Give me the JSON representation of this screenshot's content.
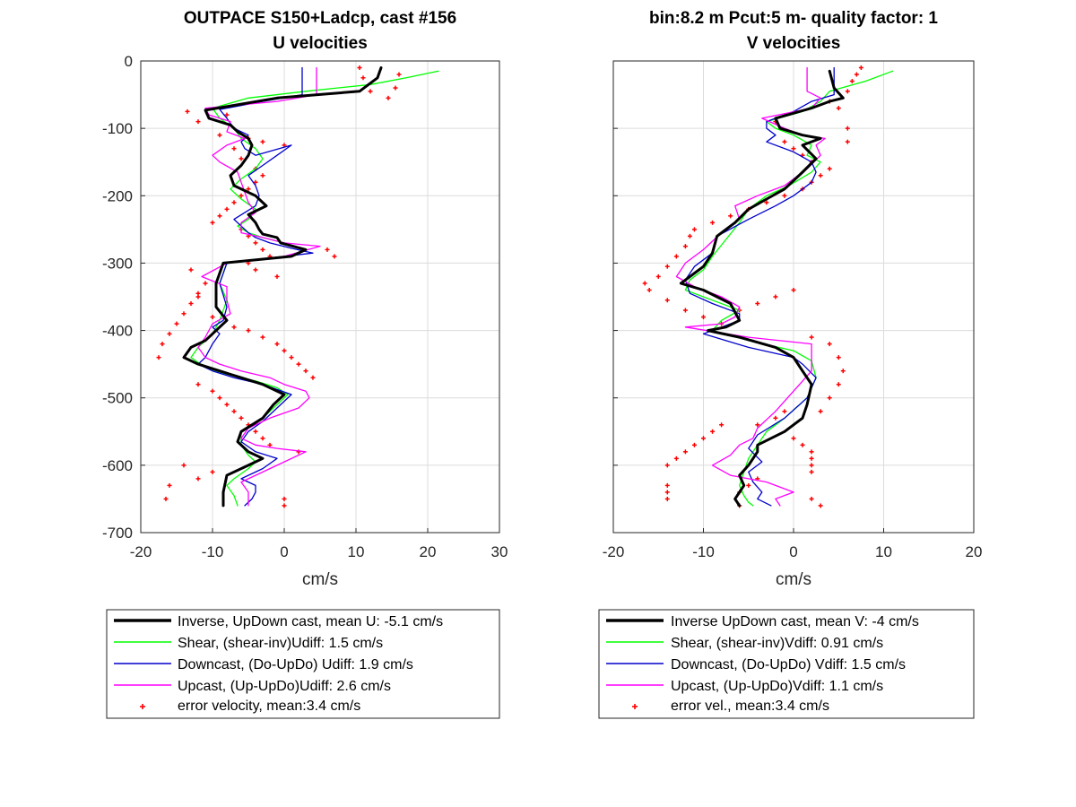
{
  "chart_data": [
    {
      "type": "line",
      "title": [
        "OUTPACE S150+Ladcp, cast #156",
        "U velocities"
      ],
      "xlabel": "cm/s",
      "ylabel": "",
      "xlim": [
        -20,
        30
      ],
      "ylim": [
        -700,
        0
      ],
      "xticks": [
        -20,
        -10,
        0,
        10,
        20,
        30
      ],
      "yticks": [
        0,
        -100,
        -200,
        -300,
        -400,
        -500,
        -600,
        -700
      ],
      "grid": true,
      "legend_position": "below",
      "series": [
        {
          "key": "inverse",
          "name": "Inverse, UpDown cast, mean U:  -5.1 cm/s",
          "color": "#000000",
          "x": [
            13.5,
            13,
            10.5,
            -1,
            -11,
            -10.5,
            -7.5,
            -6.5,
            -5,
            -4.5,
            -5,
            -6,
            -7.5,
            -7,
            -4,
            -2.5,
            -5,
            -4,
            -3.5,
            -3,
            -1,
            -0.5,
            3,
            1,
            -8.5,
            -9.5,
            -9.5,
            -8,
            -10,
            -11,
            -13,
            -14,
            -12,
            -9,
            -6,
            -3,
            0,
            -1.5,
            -3,
            -6,
            -6.5,
            -5,
            -3,
            -5,
            -8,
            -8.5,
            -8.5
          ],
          "y": [
            -10,
            -25,
            -45,
            -55,
            -73,
            -85,
            -95,
            -105,
            -115,
            -125,
            -140,
            -155,
            -170,
            -185,
            -200,
            -215,
            -228,
            -240,
            -250,
            -257,
            -262,
            -270,
            -280,
            -290,
            -300,
            -330,
            -365,
            -385,
            -405,
            -415,
            -425,
            -440,
            -450,
            -460,
            -470,
            -480,
            -495,
            -510,
            -530,
            -550,
            -565,
            -580,
            -590,
            -600,
            -615,
            -640,
            -660
          ]
        },
        {
          "key": "shear",
          "name": "Shear, (shear-inv)Udiff:  1.5 cm/s",
          "color": "#00ff00",
          "x": [
            21.5,
            17,
            12,
            3,
            -5,
            -10,
            -9,
            -7,
            -6,
            -4,
            -3,
            -4,
            -6,
            -7.5,
            -6,
            -4,
            -5,
            -6.5,
            -5,
            -3,
            0,
            3,
            1,
            -8,
            -9,
            -8,
            -9,
            -10,
            -12,
            -13,
            -11,
            -8,
            -4,
            -1,
            0.5,
            -1,
            -3,
            -6,
            -6,
            -5,
            -4,
            -5,
            -7,
            -8,
            -7,
            -6.5
          ],
          "y": [
            -15,
            -25,
            -35,
            -45,
            -55,
            -70,
            -85,
            -100,
            -115,
            -130,
            -145,
            -160,
            -175,
            -190,
            -205,
            -220,
            -235,
            -245,
            -255,
            -262,
            -270,
            -280,
            -290,
            -300,
            -330,
            -355,
            -385,
            -405,
            -425,
            -440,
            -455,
            -465,
            -475,
            -485,
            -495,
            -510,
            -530,
            -550,
            -570,
            -585,
            -595,
            -605,
            -620,
            -630,
            -645,
            -660
          ]
        },
        {
          "key": "downcast",
          "name": "Downcast, (Do-UpDo) Udiff:  1.9 cm/s",
          "color": "#0000cc",
          "x": [
            2.5,
            2.5,
            2.5,
            -3,
            -9,
            -8,
            -7,
            -5,
            -6,
            -5.5,
            -4,
            1,
            -1,
            -3,
            -5,
            -4,
            -3.5,
            -4,
            -7,
            -5,
            -4,
            -2,
            1,
            4,
            -8,
            -9,
            -8,
            -8.5,
            -10,
            -9,
            -10,
            -11,
            -12,
            -10,
            -7,
            -3,
            1,
            -1,
            -3,
            -5,
            -6,
            -4,
            -1,
            -3,
            -6,
            -4,
            -4,
            -4.5,
            -5.5
          ],
          "y": [
            -10,
            -30,
            -50,
            -60,
            -72,
            -85,
            -100,
            -110,
            -120,
            -130,
            -140,
            -125,
            -140,
            -155,
            -170,
            -185,
            -200,
            -215,
            -235,
            -255,
            -262,
            -270,
            -278,
            -285,
            -300,
            -330,
            -365,
            -385,
            -395,
            -405,
            -420,
            -440,
            -450,
            -460,
            -470,
            -480,
            -495,
            -515,
            -535,
            -550,
            -565,
            -580,
            -590,
            -605,
            -620,
            -630,
            -640,
            -650,
            -660
          ]
        },
        {
          "key": "upcast",
          "name": "Upcast, (Up-UpDo)Udiff:  2.6 cm/s",
          "color": "#ff00ff",
          "x": [
            4.5,
            4.5,
            4.5,
            -1,
            -11,
            -10.5,
            -7.5,
            -8,
            -5.5,
            -8,
            -10,
            -9,
            -6.5,
            -6,
            -5.5,
            -5,
            -4,
            -6,
            -6,
            -3,
            0,
            5,
            0,
            -8,
            -11.5,
            -8,
            -8,
            -7.5,
            -10,
            -11,
            -12,
            -11,
            -9,
            -6,
            -2,
            0,
            3,
            3.5,
            2,
            -2,
            -5,
            -6,
            -4,
            -1,
            3,
            -1,
            -4,
            -6,
            -5,
            -5
          ],
          "y": [
            -10,
            -30,
            -50,
            -60,
            -70,
            -80,
            -90,
            -105,
            -115,
            -125,
            -140,
            -150,
            -165,
            -180,
            -195,
            -210,
            -225,
            -240,
            -255,
            -262,
            -270,
            -275,
            -290,
            -300,
            -320,
            -335,
            -355,
            -375,
            -390,
            -410,
            -425,
            -440,
            -450,
            -460,
            -470,
            -480,
            -490,
            -500,
            -515,
            -530,
            -545,
            -560,
            -570,
            -575,
            -580,
            -600,
            -615,
            -625,
            -640,
            -660
          ]
        }
      ],
      "error_series": {
        "name": "error velocity, mean:3.4 cm/s",
        "color": "#ff0000",
        "x": [
          10.5,
          11,
          12,
          16,
          15.5,
          14.5,
          -13.5,
          -12,
          -8,
          -9,
          -5,
          -7,
          -3,
          0,
          -6,
          -4,
          -3,
          -4,
          -5,
          -6,
          -7,
          -8,
          -9,
          -10,
          -11,
          -12,
          -13,
          -14,
          -15,
          -16,
          -17,
          -17.5,
          -13,
          -12,
          -10,
          -7,
          -5,
          -3,
          -1,
          0,
          1,
          2,
          3,
          4,
          6,
          7,
          -12,
          -10,
          -9,
          -8,
          -7,
          -6,
          -5,
          -4,
          -3,
          -2,
          2,
          -10,
          -12,
          -14,
          -16,
          -16.5,
          -6,
          -5,
          -4,
          -3,
          -2,
          -5,
          -4,
          -1,
          0,
          0
        ],
        "y": [
          -10,
          -25,
          -45,
          -20,
          -40,
          -55,
          -75,
          -90,
          -80,
          -110,
          -115,
          -130,
          -120,
          -125,
          -145,
          -160,
          -170,
          -180,
          -190,
          -200,
          -210,
          -220,
          -230,
          -240,
          -330,
          -345,
          -360,
          -375,
          -390,
          -405,
          -420,
          -440,
          -310,
          -350,
          -380,
          -395,
          -400,
          -410,
          -420,
          -430,
          -440,
          -450,
          -460,
          -470,
          -280,
          -290,
          -480,
          -490,
          -500,
          -510,
          -520,
          -530,
          -540,
          -550,
          -560,
          -570,
          -580,
          -610,
          -620,
          -600,
          -630,
          -650,
          -250,
          -260,
          -270,
          -280,
          -290,
          -300,
          -310,
          -320,
          -650,
          -660
        ]
      }
    },
    {
      "type": "line",
      "title": [
        "bin:8.2 m  Pcut:5 m- quality factor:  1",
        "V velocities"
      ],
      "xlabel": "cm/s",
      "ylabel": "",
      "xlim": [
        -20,
        20
      ],
      "ylim": [
        -700,
        0
      ],
      "xticks": [
        -20,
        -10,
        0,
        10,
        20
      ],
      "yticks": [
        0,
        -100,
        -200,
        -300,
        -400,
        -500,
        -600,
        -700
      ],
      "grid": true,
      "legend_position": "below",
      "series": [
        {
          "key": "inverse",
          "name": "Inverse UpDown cast, mean V:  -4 cm/s",
          "color": "#000000",
          "x": [
            4,
            4.5,
            5.5,
            4,
            2,
            -2,
            -1.5,
            1,
            3,
            1,
            2.5,
            1,
            -1,
            -3,
            -5,
            -6.5,
            -8.5,
            -9,
            -10,
            -11.5,
            -12.5,
            -10,
            -7,
            -6,
            -7.5,
            -9.5,
            -6,
            -2,
            0,
            1,
            2,
            1.5,
            1,
            -1,
            -2.5,
            -4,
            -4,
            -5,
            -6,
            -5.5,
            -6,
            -6.5,
            -6
          ],
          "y": [
            -15,
            -40,
            -55,
            -60,
            -70,
            -85,
            -100,
            -110,
            -115,
            -125,
            -145,
            -165,
            -190,
            -205,
            -220,
            -240,
            -260,
            -285,
            -305,
            -320,
            -330,
            -340,
            -360,
            -385,
            -395,
            -400,
            -410,
            -425,
            -440,
            -460,
            -480,
            -510,
            -530,
            -550,
            -560,
            -570,
            -580,
            -600,
            -615,
            -630,
            -640,
            -650,
            -660
          ]
        },
        {
          "key": "shear",
          "name": "Shear, (shear-inv)Vdiff:  0.91 cm/s",
          "color": "#00ff00",
          "x": [
            11,
            8,
            4,
            3,
            1,
            -3,
            -2,
            0,
            2,
            1.5,
            3,
            2,
            -0.5,
            -3,
            -5,
            -6,
            -7.5,
            -9,
            -10,
            -11.5,
            -12,
            -9,
            -6,
            -8,
            -9,
            -5,
            0,
            2,
            2.5,
            1.5,
            -1,
            -3,
            -4,
            -5,
            -5.5,
            -6,
            -5.5,
            -5,
            -4.5
          ],
          "y": [
            -15,
            -30,
            -45,
            -60,
            -75,
            -90,
            -100,
            -110,
            -125,
            -140,
            -150,
            -165,
            -185,
            -200,
            -220,
            -240,
            -265,
            -290,
            -310,
            -325,
            -340,
            -355,
            -370,
            -385,
            -400,
            -415,
            -430,
            -445,
            -470,
            -500,
            -530,
            -550,
            -570,
            -590,
            -610,
            -630,
            -645,
            -655,
            -660
          ]
        },
        {
          "key": "downcast",
          "name": "Downcast, (Do-UpDo) Vdiff:  1.5 cm/s",
          "color": "#0000cc",
          "x": [
            4.5,
            4.5,
            4.5,
            2,
            0,
            -3,
            -3,
            -2,
            -3,
            0,
            2,
            2.5,
            2,
            0,
            -2,
            -5,
            -8.5,
            -9,
            -11,
            -12,
            -11.5,
            -9,
            -6,
            -6,
            -8,
            -10,
            -5,
            0,
            1,
            2.5,
            1.5,
            -1,
            -4,
            -5,
            -3.5,
            -5,
            -4.5,
            -3.5,
            -4,
            -2.5
          ],
          "y": [
            -10,
            -30,
            -50,
            -60,
            -75,
            -90,
            -100,
            -110,
            -120,
            -135,
            -150,
            -165,
            -180,
            -200,
            -215,
            -235,
            -260,
            -285,
            -305,
            -325,
            -345,
            -360,
            -375,
            -385,
            -395,
            -405,
            -425,
            -440,
            -450,
            -470,
            -500,
            -530,
            -555,
            -575,
            -595,
            -610,
            -625,
            -640,
            -650,
            -660
          ]
        },
        {
          "key": "upcast",
          "name": "Upcast, (Up-UpDo)Vdiff:  1.1 cm/s",
          "color": "#ff00ff",
          "x": [
            1.5,
            1.5,
            1.5,
            3,
            2,
            -3.5,
            -1,
            1,
            3.5,
            2.5,
            3,
            1.5,
            -1,
            -4,
            -6.5,
            -6,
            -8,
            -10,
            -12,
            -13,
            -11,
            -8,
            -6,
            -6.5,
            -8,
            -12,
            -5,
            2,
            2,
            2,
            0,
            -2,
            -4,
            -4.5,
            -6,
            -7,
            -9,
            -7,
            -3,
            0,
            -2,
            -1.5
          ],
          "y": [
            -10,
            -25,
            -45,
            -55,
            -70,
            -85,
            -100,
            -110,
            -115,
            -125,
            -140,
            -160,
            -185,
            -200,
            -215,
            -235,
            -255,
            -280,
            -300,
            -320,
            -335,
            -350,
            -365,
            -380,
            -390,
            -395,
            -410,
            -420,
            -440,
            -460,
            -490,
            -520,
            -545,
            -560,
            -570,
            -585,
            -600,
            -615,
            -625,
            -640,
            -650,
            -660
          ]
        }
      ],
      "error_series": {
        "name": "error vel., mean:3.4 cm/s",
        "color": "#ff0000",
        "x": [
          7.5,
          7,
          6.5,
          6,
          4,
          5,
          6,
          -2,
          -1,
          0,
          1,
          2,
          4,
          6,
          3,
          2,
          1,
          -1,
          -3,
          -5,
          -7,
          -9,
          -11,
          -11.5,
          -12,
          -13,
          -14,
          -15,
          -16.5,
          -16,
          -14,
          -12,
          -10,
          -8,
          -6,
          -4,
          -2,
          0,
          2,
          4,
          5,
          5.5,
          5,
          4,
          3,
          -8,
          -9,
          -10,
          -11,
          -12,
          -13,
          -14,
          -14,
          -14,
          -14,
          -6,
          -4,
          -2,
          -1,
          0,
          1,
          2,
          2,
          2,
          2,
          -4,
          -5,
          -6,
          2,
          3
        ],
        "y": [
          -10,
          -20,
          -30,
          -45,
          -60,
          -70,
          -100,
          -90,
          -120,
          -130,
          -140,
          -150,
          -160,
          -120,
          -170,
          -180,
          -190,
          -200,
          -210,
          -220,
          -230,
          -240,
          -250,
          -260,
          -275,
          -290,
          -305,
          -320,
          -330,
          -340,
          -355,
          -370,
          -380,
          -390,
          -370,
          -360,
          -350,
          -340,
          -410,
          -420,
          -440,
          -460,
          -480,
          -500,
          -520,
          -540,
          -550,
          -560,
          -570,
          -580,
          -590,
          -600,
          -630,
          -640,
          -650,
          -660,
          -540,
          -530,
          -520,
          -560,
          -570,
          -580,
          -590,
          -600,
          -610,
          -620,
          -630,
          -640,
          -650,
          -660
        ]
      }
    }
  ]
}
